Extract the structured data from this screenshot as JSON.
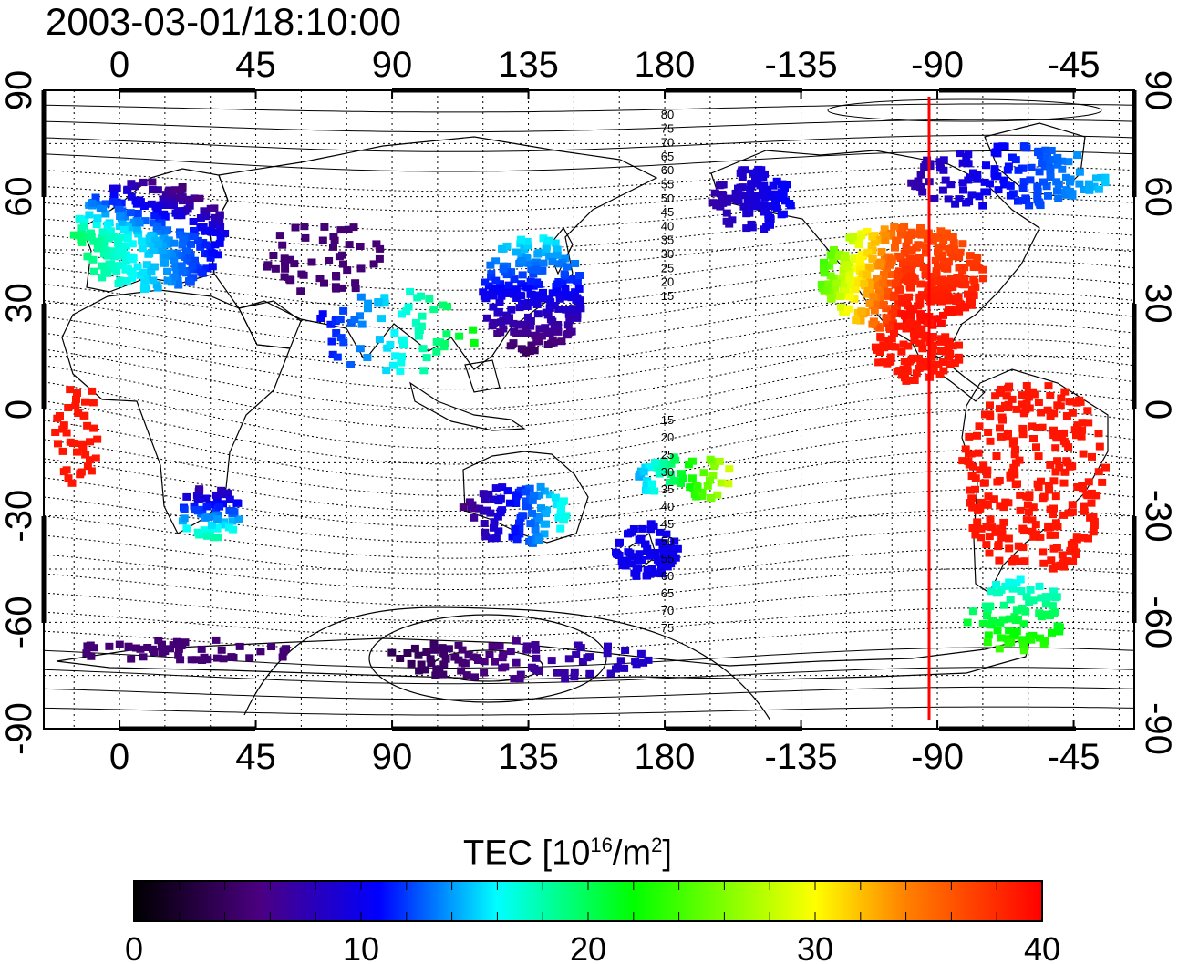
{
  "timestamp": "2003-03-01/18:10:00",
  "map": {
    "lon_ticks": [
      "0",
      "45",
      "90",
      "135",
      "180",
      "-135",
      "-90",
      "-45"
    ],
    "lat_ticks": [
      "90",
      "60",
      "30",
      "0",
      "-30",
      "-60",
      "-90"
    ],
    "contour_labels_north": [
      "80",
      "75",
      "70",
      "65",
      "60",
      "55",
      "50",
      "45",
      "40",
      "35",
      "30",
      "25",
      "20",
      "15"
    ],
    "contour_labels_south": [
      "15",
      "20",
      "25",
      "30",
      "35",
      "40",
      "45",
      "50",
      "55",
      "60",
      "65",
      "70",
      "75"
    ],
    "meridian_marker_lon": -90,
    "marker_color": "#ff0000"
  },
  "colorbar": {
    "title_main": "TEC  [10",
    "title_exp": "16",
    "title_mid": "/m",
    "title_exp2": "2",
    "title_end": "]",
    "ticks": [
      "0",
      "10",
      "20",
      "30",
      "40"
    ],
    "min": 0,
    "max": 40,
    "stops": [
      "#000000",
      "#4b0082",
      "#0000ff",
      "#00ffff",
      "#00ff00",
      "#ffff00",
      "#ff8000",
      "#ff0000"
    ]
  }
}
